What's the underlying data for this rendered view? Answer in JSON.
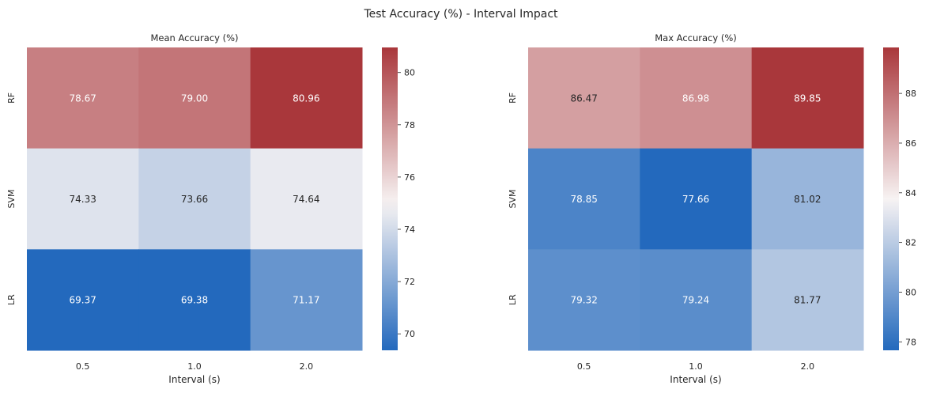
{
  "figure": {
    "suptitle": "Test Accuracy (%) - Interval Impact"
  },
  "colormap": {
    "low": "#2369bd",
    "mid": "#f7f3f3",
    "high": "#a9373b"
  },
  "chart_data": [
    {
      "type": "heatmap",
      "title": "Mean Accuracy (%)",
      "xlabel": "Interval (s)",
      "ylabel": "",
      "x_categories": [
        "0.5",
        "1.0",
        "2.0"
      ],
      "y_categories": [
        "RF",
        "SVM",
        "LR"
      ],
      "values": [
        [
          78.67,
          79.0,
          80.96
        ],
        [
          74.33,
          73.66,
          74.64
        ],
        [
          69.37,
          69.38,
          71.17
        ]
      ],
      "vmin": 69.37,
      "vcenter": 75.0,
      "vmax": 80.96,
      "colorbar_ticks": [
        70,
        72,
        74,
        76,
        78,
        80
      ],
      "annotations": true,
      "colorbar": true
    },
    {
      "type": "heatmap",
      "title": "Max Accuracy (%)",
      "xlabel": "Interval (s)",
      "ylabel": "",
      "x_categories": [
        "0.5",
        "1.0",
        "2.0"
      ],
      "y_categories": [
        "RF",
        "SVM",
        "LR"
      ],
      "values": [
        [
          86.47,
          86.98,
          89.85
        ],
        [
          78.85,
          77.66,
          81.02
        ],
        [
          79.32,
          79.24,
          81.77
        ]
      ],
      "vmin": 77.66,
      "vcenter": 83.75,
      "vmax": 89.85,
      "colorbar_ticks": [
        78,
        80,
        82,
        84,
        86,
        88
      ],
      "annotations": true,
      "colorbar": true
    }
  ]
}
